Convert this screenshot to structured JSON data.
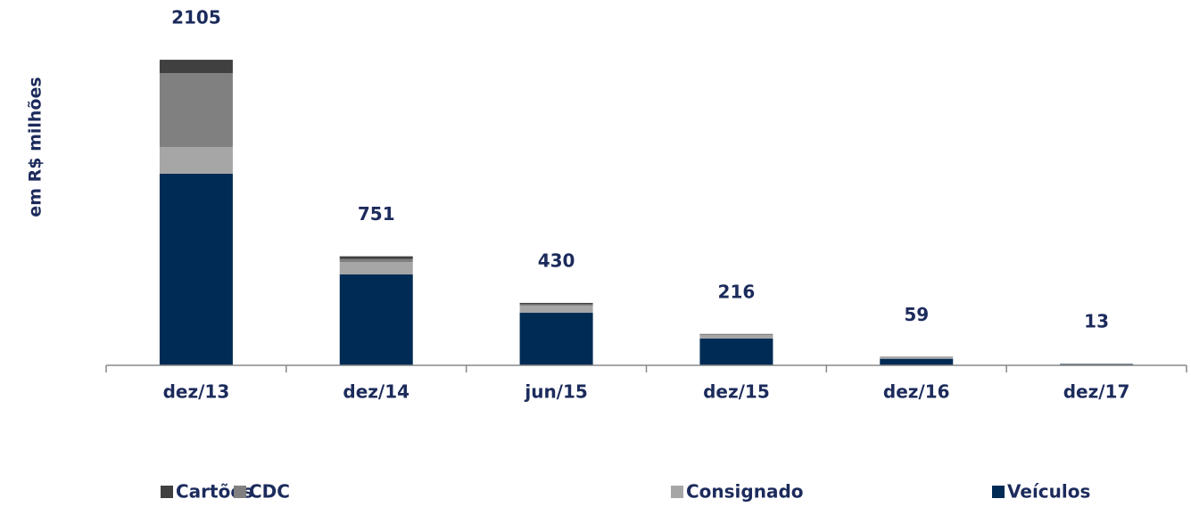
{
  "chart_data": {
    "type": "bar",
    "stacked": true,
    "y_axis_label": "em R$ milhões",
    "categories": [
      "dez/13",
      "dez/14",
      "jun/15",
      "dez/15",
      "dez/16",
      "dez/17"
    ],
    "series": [
      {
        "name": "Cartões",
        "color": "#404040",
        "values": [
          92,
          19,
          9,
          3,
          2,
          0
        ]
      },
      {
        "name": "CDC",
        "color": "#808080",
        "values": [
          509,
          20,
          10,
          4,
          2,
          1
        ]
      },
      {
        "name": "Consignado",
        "color": "#a6a6a6",
        "values": [
          184,
          86,
          49,
          25,
          10,
          4
        ]
      },
      {
        "name": "Veículos",
        "color": "#002b54",
        "values": [
          1320,
          626,
          362,
          184,
          45,
          8
        ]
      }
    ],
    "total_labels": [
      2105,
      751,
      430,
      216,
      59,
      13
    ],
    "ylim": [
      0,
      2400
    ]
  }
}
